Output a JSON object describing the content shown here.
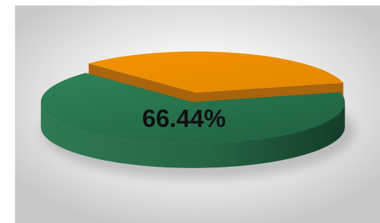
{
  "chart_data": {
    "type": "pie",
    "style": "3d",
    "title": "",
    "slices": [
      {
        "value": 66.44,
        "label": "66.44%",
        "color": "#2f7a52",
        "exploded": true
      },
      {
        "value": 33.56,
        "label": "",
        "color": "#ee9200",
        "exploded": false
      }
    ],
    "legend": "none"
  }
}
